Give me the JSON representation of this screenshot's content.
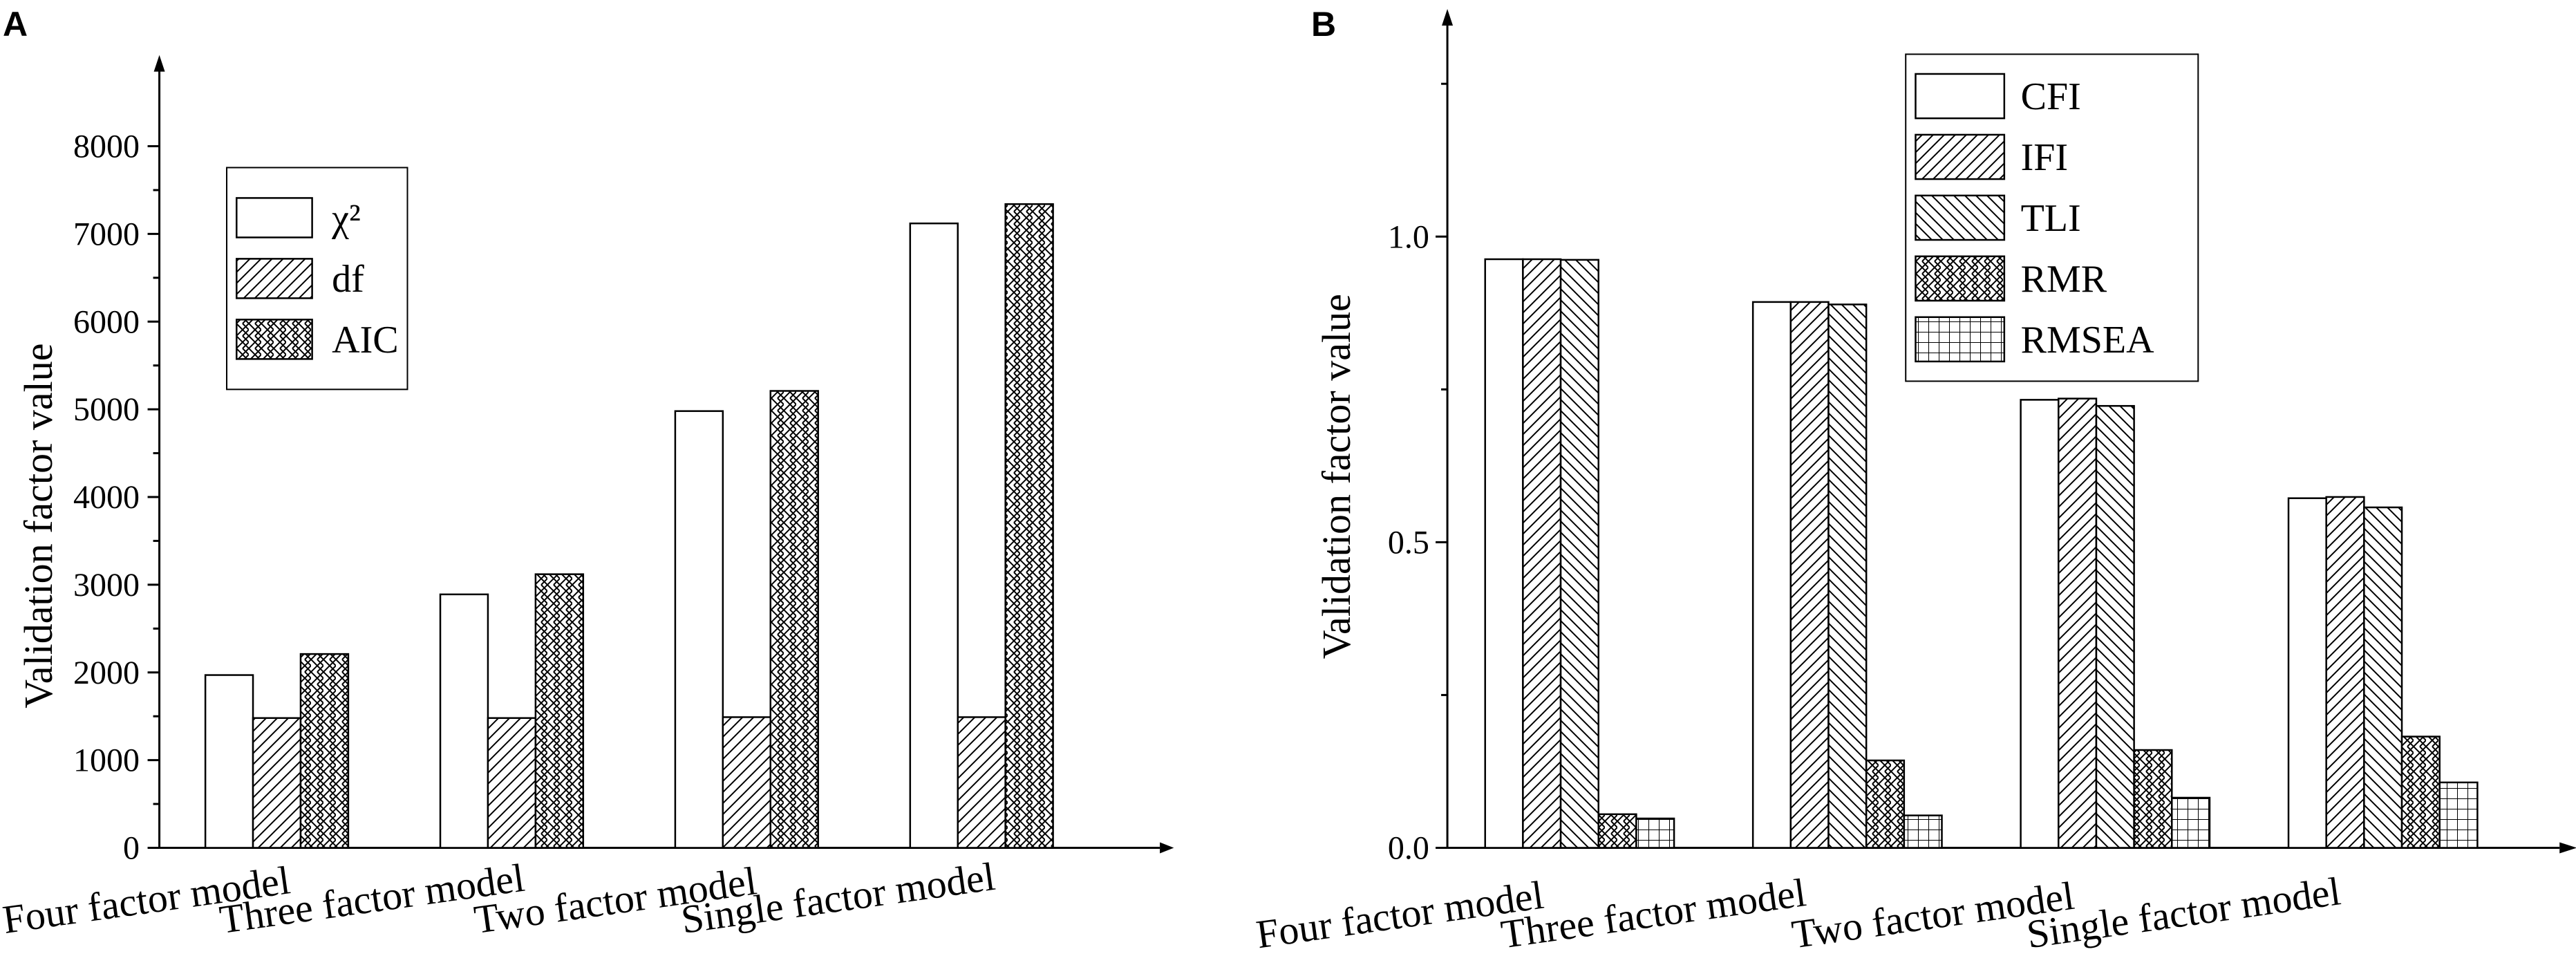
{
  "panel_labels": [
    "A",
    "B"
  ],
  "colors": {
    "ink": "#000000",
    "background": "#ffffff"
  },
  "chart_data": [
    {
      "type": "bar",
      "panel": "A",
      "ylabel": "Validation factor value",
      "xlabel": "",
      "ylim": [
        0,
        8000
      ],
      "yticks": [
        0,
        1000,
        2000,
        3000,
        4000,
        5000,
        6000,
        7000,
        8000
      ],
      "y_tick_labels": [
        "0",
        "1000",
        "2000",
        "3000",
        "4000",
        "5000",
        "6000",
        "7000",
        "8000"
      ],
      "categories": [
        "Four factor model",
        "Three factor model",
        "Two factor model",
        "Single factor model"
      ],
      "series": [
        {
          "name": "χ²",
          "pattern": "none",
          "values": [
            1970,
            2890,
            4980,
            7120
          ]
        },
        {
          "name": "df",
          "pattern": "diagonal-forward",
          "values": [
            1480,
            1480,
            1490,
            1490
          ]
        },
        {
          "name": "AIC",
          "pattern": "crosshatch",
          "values": [
            2210,
            3120,
            5210,
            7340
          ]
        }
      ],
      "legend_position": "top-left",
      "grid": false
    },
    {
      "type": "bar",
      "panel": "B",
      "ylabel": "Validation factor value",
      "xlabel": "",
      "ylim": [
        0,
        1.35
      ],
      "yticks": [
        0,
        0.5,
        1.0
      ],
      "y_tick_labels": [
        "0.0",
        "0.5",
        "1.0"
      ],
      "categories": [
        "Four factor model",
        "Three factor model",
        "Two factor model",
        "Single factor model"
      ],
      "series": [
        {
          "name": "CFI",
          "pattern": "none",
          "values": [
            0.963,
            0.893,
            0.733,
            0.572
          ]
        },
        {
          "name": "IFI",
          "pattern": "diagonal-forward",
          "values": [
            0.963,
            0.893,
            0.735,
            0.574
          ]
        },
        {
          "name": "TLI",
          "pattern": "diagonal-back",
          "values": [
            0.962,
            0.889,
            0.723,
            0.557
          ]
        },
        {
          "name": "RMR",
          "pattern": "crosshatch",
          "values": [
            0.055,
            0.143,
            0.16,
            0.182
          ]
        },
        {
          "name": "RMSEA",
          "pattern": "grid",
          "values": [
            0.048,
            0.053,
            0.082,
            0.107
          ]
        }
      ],
      "legend_position": "top-right",
      "grid": false
    }
  ]
}
